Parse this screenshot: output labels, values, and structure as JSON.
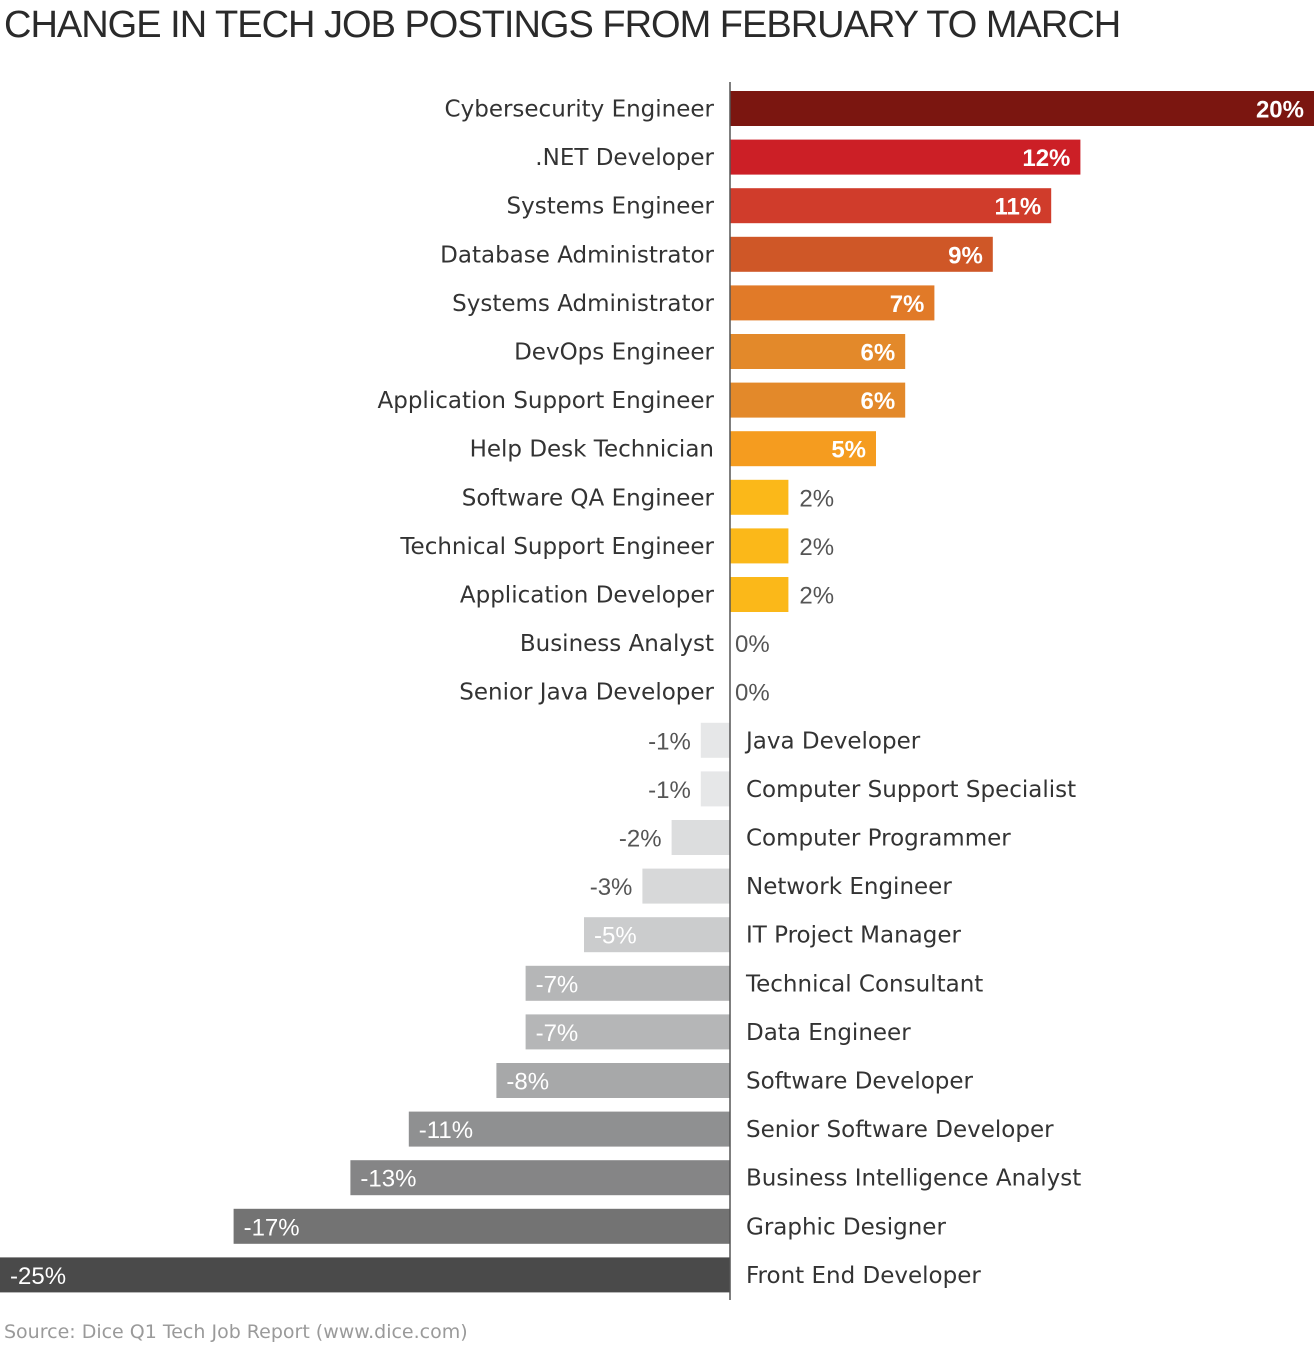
{
  "chart_data": {
    "type": "bar",
    "orientation": "horizontal",
    "title": "CHANGE IN TECH JOB POSTINGS FROM FEBRUARY TO MARCH",
    "source": "Source: Dice Q1 Tech Job Report (www.dice.com)",
    "value_suffix": "%",
    "xlim": [
      -25,
      20
    ],
    "grid": false,
    "categories": [
      "Cybersecurity Engineer",
      ".NET Developer",
      "Systems Engineer",
      "Database Administrator",
      "Systems Administrator",
      "DevOps Engineer",
      "Application Support Engineer",
      "Help Desk Technician",
      "Software QA Engineer",
      "Technical Support Engineer",
      "Application Developer",
      "Business Analyst",
      "Senior Java Developer",
      "Java Developer",
      "Computer Support Specialist",
      "Computer Programmer",
      "Network Engineer",
      "IT Project Manager",
      "Technical Consultant",
      "Data Engineer",
      "Software Developer",
      "Senior Software Developer",
      "Business Intelligence Analyst",
      "Graphic Designer",
      "Front End Developer"
    ],
    "values": [
      20,
      12,
      11,
      9,
      7,
      6,
      6,
      5,
      2,
      2,
      2,
      0,
      0,
      -1,
      -1,
      -2,
      -3,
      -5,
      -7,
      -7,
      -8,
      -11,
      -13,
      -17,
      -25
    ],
    "colors": [
      "#7b1610",
      "#cc1f26",
      "#d03c2b",
      "#cf5727",
      "#e17a28",
      "#e3892a",
      "#e3892a",
      "#f59c1f",
      "#fbb819",
      "#fbb819",
      "#fbb819",
      "#fbb819",
      "#fbb819",
      "#e6e7e8",
      "#e6e7e8",
      "#dcddde",
      "#d7d8d9",
      "#cbcccd",
      "#b5b6b7",
      "#b5b6b7",
      "#a7a8a9",
      "#8f9091",
      "#858586",
      "#737373",
      "#4a4a4a"
    ],
    "axis_color": "#555555"
  }
}
